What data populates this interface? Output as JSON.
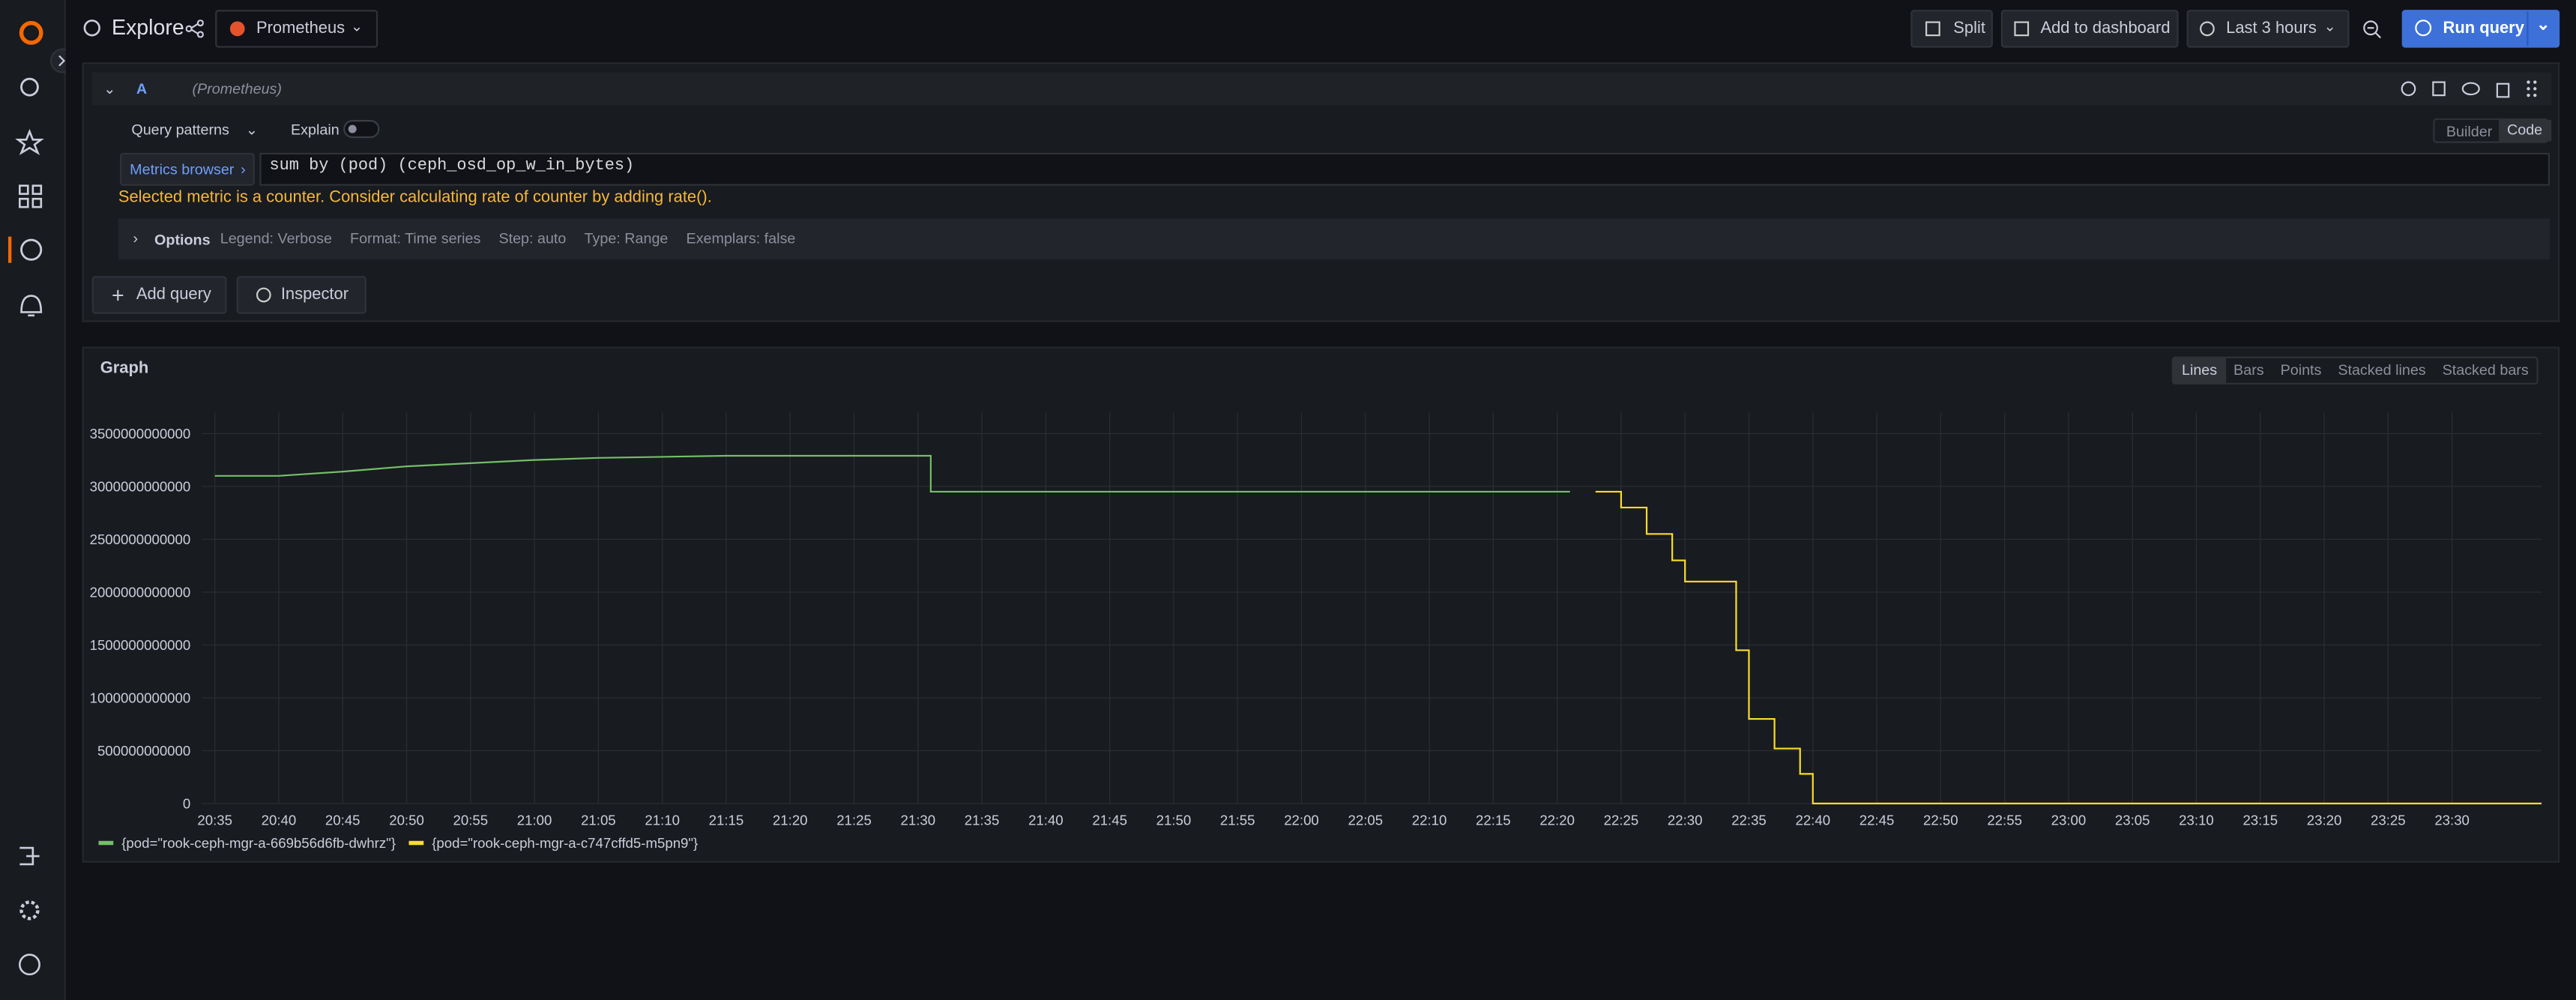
{
  "toolbar": {
    "title": "Explore",
    "datasource": "Prometheus",
    "split": "Split",
    "add_to_dashboard": "Add to dashboard",
    "time_range": "Last 3 hours",
    "run_query": "Run query"
  },
  "query": {
    "ref_id": "A",
    "datasource": "(Prometheus)",
    "query_patterns": "Query patterns",
    "explain": "Explain",
    "modes": [
      "Builder",
      "Code"
    ],
    "metrics_browser": "Metrics browser",
    "expr": "sum by (pod) (ceph_osd_op_w_in_bytes)",
    "warning": "Selected metric is a counter. Consider calculating rate of counter by adding rate().",
    "options_label": "Options",
    "options": [
      "Legend: Verbose",
      "Format: Time series",
      "Step: auto",
      "Type: Range",
      "Exemplars: false"
    ]
  },
  "buttons": {
    "add_query": "Add query",
    "inspector": "Inspector"
  },
  "graph": {
    "view_modes": [
      "Lines",
      "Bars",
      "Points",
      "Stacked lines",
      "Stacked bars"
    ]
  },
  "chart_data": {
    "type": "line",
    "title": "Graph",
    "x": [
      "20:35",
      "20:40",
      "20:45",
      "20:50",
      "20:55",
      "21:00",
      "21:05",
      "21:10",
      "21:15",
      "21:31",
      "21:31",
      "22:21",
      "22:23",
      "22:25",
      "22:25",
      "22:27",
      "22:27",
      "22:29",
      "22:29",
      "22:30",
      "22:30",
      "22:34",
      "22:34",
      "22:35",
      "22:35",
      "22:37",
      "22:37",
      "22:39",
      "22:39",
      "22:40",
      "22:40",
      "23:37"
    ],
    "series": [
      {
        "name": "{pod=\"rook-ceph-mgr-a-669b56d6fb-dwhrz\"}",
        "color": "#73bf69",
        "values": [
          3100000000000,
          3100000000000,
          3140000000000,
          3190000000000,
          3220000000000,
          3250000000000,
          3270000000000,
          3280000000000,
          3290000000000,
          3290000000000,
          2950000000000,
          2950000000000,
          null,
          null,
          null,
          null,
          null,
          null,
          null,
          null,
          null,
          null,
          null,
          null,
          null,
          null,
          null,
          null,
          null,
          null,
          null,
          null
        ]
      },
      {
        "name": "{pod=\"rook-ceph-mgr-a-c747cffd5-m5pn9\"}",
        "color": "#fade2a",
        "values": [
          null,
          null,
          null,
          null,
          null,
          null,
          null,
          null,
          null,
          null,
          null,
          null,
          2950000000000,
          2950000000000,
          2800000000000,
          2800000000000,
          2550000000000,
          2550000000000,
          2300000000000,
          2300000000000,
          2100000000000,
          2100000000000,
          1450000000000,
          1450000000000,
          800000000000,
          800000000000,
          520000000000,
          520000000000,
          280000000000,
          280000000000,
          0,
          0
        ]
      }
    ],
    "xlim": [
      "20:34",
      "23:37"
    ],
    "xticks": [
      "20:35",
      "20:40",
      "20:45",
      "20:50",
      "20:55",
      "21:00",
      "21:05",
      "21:10",
      "21:15",
      "21:20",
      "21:25",
      "21:30",
      "21:35",
      "21:40",
      "21:45",
      "21:50",
      "21:55",
      "22:00",
      "22:05",
      "22:10",
      "22:15",
      "22:20",
      "22:25",
      "22:30",
      "22:35",
      "22:40",
      "22:45",
      "22:50",
      "22:55",
      "23:00",
      "23:05",
      "23:10",
      "23:15",
      "23:20",
      "23:25",
      "23:30"
    ],
    "ylim": [
      0,
      3700000000000
    ],
    "yticks": [
      0,
      500000000000,
      1000000000000,
      1500000000000,
      2000000000000,
      2500000000000,
      3000000000000,
      3500000000000
    ],
    "grid": true
  }
}
